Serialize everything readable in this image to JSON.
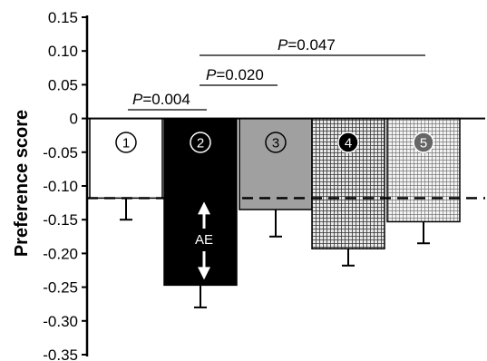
{
  "chart_data": {
    "type": "bar",
    "ylabel": "Preference score",
    "ylim": [
      -0.35,
      0.15
    ],
    "yticks": [
      "0.15",
      "0.10",
      "0.05",
      "0",
      "-0.05",
      "-0.10",
      "-0.15",
      "-0.20",
      "-0.25",
      "-0.30",
      "-0.35"
    ],
    "ytick_values": [
      0.15,
      0.1,
      0.05,
      0,
      -0.05,
      -0.1,
      -0.15,
      -0.2,
      -0.25,
      -0.3,
      -0.35
    ],
    "categories": [
      "1",
      "2",
      "3",
      "4",
      "5"
    ],
    "category_markers": [
      "①",
      "②",
      "③",
      "④",
      "⑤"
    ],
    "values": [
      -0.118,
      -0.247,
      -0.135,
      -0.193,
      -0.153
    ],
    "errors": [
      0.032,
      0.033,
      0.04,
      0.025,
      0.032
    ],
    "fills": [
      "white",
      "black",
      "gray",
      "crosshatch-dark",
      "crosshatch-light"
    ],
    "reference_line": -0.118,
    "comparisons": [
      {
        "p_prefix": "P",
        "p_text": "=0.004",
        "from": 1,
        "to": 2
      },
      {
        "p_prefix": "P",
        "p_text": "=0.020",
        "from": 2,
        "to": 3
      },
      {
        "p_prefix": "P",
        "p_text": "=0.047",
        "from": 2,
        "to": 5
      }
    ],
    "annotation": "AE",
    "grid": false,
    "colors": {
      "bar_white": "#ffffff",
      "bar_black": "#000000",
      "bar_gray": "#a0a0a0",
      "hatch_dark": "#3a3a3a",
      "hatch_light": "#777777"
    }
  }
}
